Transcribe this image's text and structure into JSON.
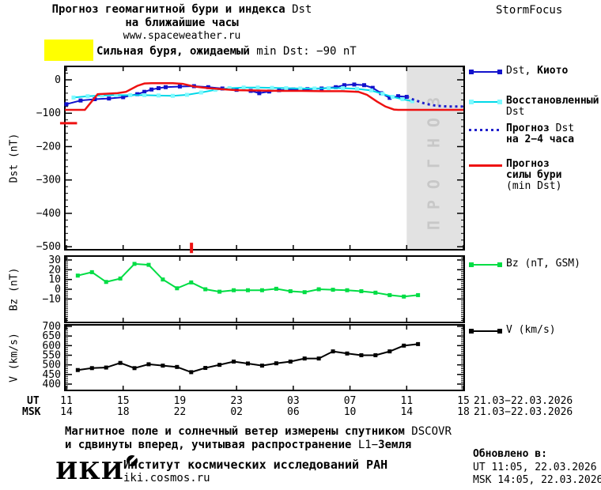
{
  "brand": "StormFocus",
  "title": {
    "line1": [
      {
        "t": "Прогноз геомагнитной бури и индекса ",
        "f": "b"
      },
      {
        "t": "Dst",
        "f": "l"
      }
    ],
    "line2": [
      {
        "t": "на ближайшие часы",
        "f": "b"
      }
    ],
    "line3": [
      {
        "t": "www.spaceweather.ru",
        "f": "l"
      }
    ]
  },
  "alert": {
    "color": "#ffff00",
    "label": [
      {
        "t": "Сильная буря, ожидаемый ",
        "f": "b"
      },
      {
        "t": "min Dst: −90 nT",
        "f": "l"
      }
    ]
  },
  "legend": {
    "items": [
      {
        "name": "dst-kyoto",
        "color": "#1212cc",
        "marker": "#1212cc",
        "lines": [
          [
            {
              "t": "Dst, ",
              "f": "l"
            },
            {
              "t": "Киото",
              "f": "b"
            }
          ]
        ]
      },
      {
        "name": "restored-dst",
        "color": "#00d8e8",
        "marker": "#7dfaff",
        "lines": [
          [
            {
              "t": "Восстановленный",
              "f": "b"
            }
          ],
          [
            {
              "t": "Dst",
              "f": "l"
            }
          ]
        ]
      },
      {
        "name": "forecast-dst",
        "color": "#2020cc",
        "lines": [
          [
            {
              "t": "Прогноз ",
              "f": "b"
            },
            {
              "t": "Dst",
              "f": "l"
            }
          ],
          [
            {
              "t": "на 2−4 часа",
              "f": "b"
            }
          ]
        ]
      },
      {
        "name": "forecast-strength",
        "color": "#ee1111",
        "lines": [
          [
            {
              "t": "Прогноз",
              "f": "b"
            }
          ],
          [
            {
              "t": "силы бури",
              "f": "b"
            }
          ],
          [
            {
              "t": "(min Dst)",
              "f": "l"
            }
          ]
        ]
      },
      {
        "name": "bz",
        "color": "#00dd44",
        "marker": "#00dd44",
        "lines": [
          [
            {
              "t": "Bz (nT, GSM)",
              "f": "l"
            }
          ]
        ]
      },
      {
        "name": "v",
        "color": "#000000",
        "marker": "#000000",
        "lines": [
          [
            {
              "t": "V (km/s)",
              "f": "l"
            }
          ]
        ]
      }
    ]
  },
  "xaxis": {
    "ut_label": "UT",
    "msk_label": "MSK",
    "tick_hours": [
      0,
      4,
      8,
      12,
      16,
      20,
      24,
      28
    ],
    "hours_ut": [
      "11",
      "15",
      "19",
      "23",
      "03",
      "07",
      "11",
      "15"
    ],
    "hours_msk": [
      "14",
      "18",
      "22",
      "02",
      "06",
      "10",
      "14",
      "18"
    ],
    "date_ut": "21.03−22.03.2026",
    "date_msk": "21.03−22.03.2026"
  },
  "chart_data": [
    {
      "type": "line",
      "ylabel": "Dst (nT)",
      "yticks": [
        0,
        -100,
        -200,
        -300,
        -400,
        -500
      ],
      "yminor": 20,
      "ylim": [
        -509,
        40
      ],
      "xlim_hours": [
        0,
        28
      ],
      "forecast_band": {
        "from_hour": 24,
        "to_hour": 28,
        "label": "ПРОГНОЗ",
        "fill": "#e2e2e2",
        "label_color": "#c8c8c8"
      },
      "series": [
        {
          "name": "Dst, Киото",
          "color": "#1212cc",
          "marker": "#1212cc",
          "points": [
            [
              0,
              -73
            ],
            [
              1,
              -62
            ],
            [
              2,
              -58
            ],
            [
              3,
              -56
            ],
            [
              4,
              -52
            ],
            [
              5,
              -43
            ],
            [
              5.5,
              -36
            ],
            [
              6,
              -29
            ],
            [
              6.5,
              -25
            ],
            [
              7,
              -22
            ],
            [
              8,
              -20
            ],
            [
              9,
              -19
            ],
            [
              10,
              -22
            ],
            [
              11,
              -26
            ],
            [
              12,
              -30
            ],
            [
              13,
              -33
            ],
            [
              13.6,
              -40
            ],
            [
              14.3,
              -35
            ],
            [
              15,
              -31
            ],
            [
              16,
              -29
            ],
            [
              17,
              -28
            ],
            [
              18,
              -26
            ],
            [
              19,
              -22
            ],
            [
              19.6,
              -16
            ],
            [
              20.3,
              -14
            ],
            [
              21,
              -16
            ],
            [
              21.6,
              -24
            ],
            [
              22.2,
              -40
            ],
            [
              22.8,
              -54
            ],
            [
              23.4,
              -49
            ],
            [
              24,
              -51
            ]
          ]
        },
        {
          "name": "Восстановленный Dst",
          "color": "#00d8e8",
          "marker": "#7dfaff",
          "points": [
            [
              0.5,
              -53
            ],
            [
              1.5,
              -49
            ],
            [
              2.5,
              -47
            ],
            [
              3.5,
              -46
            ],
            [
              4.5,
              -46
            ],
            [
              5.5,
              -46
            ],
            [
              6.5,
              -47
            ],
            [
              7.5,
              -48
            ],
            [
              8.5,
              -45
            ],
            [
              9.5,
              -38
            ],
            [
              10.5,
              -30
            ],
            [
              11.5,
              -25
            ],
            [
              12.5,
              -23
            ],
            [
              13.5,
              -23
            ],
            [
              14.5,
              -24
            ],
            [
              15.5,
              -25
            ],
            [
              16.5,
              -26
            ],
            [
              17.5,
              -26
            ],
            [
              18.5,
              -25
            ],
            [
              19.5,
              -25
            ],
            [
              20.5,
              -27
            ],
            [
              21.5,
              -32
            ],
            [
              22.3,
              -42
            ],
            [
              23,
              -51
            ],
            [
              23.7,
              -58
            ],
            [
              24.4,
              -64
            ]
          ]
        },
        {
          "name": "Прогноз Dst на 2−4 часа",
          "color": "#2020cc",
          "dash": "3 4",
          "width": 3,
          "points": [
            [
              24,
              -51
            ],
            [
              24.4,
              -58
            ],
            [
              24.8,
              -64
            ],
            [
              25.2,
              -70
            ],
            [
              25.6,
              -74
            ],
            [
              26,
              -77
            ],
            [
              26.5,
              -79
            ],
            [
              27,
              -80
            ],
            [
              27.5,
              -80
            ],
            [
              28,
              -80
            ]
          ]
        },
        {
          "name": "Прогноз силы бури (min Dst)",
          "color": "#ee1111",
          "width": 2.5,
          "points": [
            [
              -0.1,
              -90
            ],
            [
              1.3,
              -90
            ],
            [
              2.2,
              -43
            ],
            [
              3.6,
              -40
            ],
            [
              4.2,
              -36
            ],
            [
              5,
              -18
            ],
            [
              5.5,
              -11
            ],
            [
              6,
              -10
            ],
            [
              7.5,
              -10
            ],
            [
              8.2,
              -12
            ],
            [
              9,
              -20
            ],
            [
              10,
              -25
            ],
            [
              11,
              -28
            ],
            [
              12,
              -31
            ],
            [
              13.5,
              -32
            ],
            [
              15,
              -33
            ],
            [
              16.5,
              -33
            ],
            [
              18,
              -34
            ],
            [
              19.5,
              -34
            ],
            [
              20.6,
              -36
            ],
            [
              21.2,
              -45
            ],
            [
              21.9,
              -65
            ],
            [
              22.5,
              -80
            ],
            [
              23.1,
              -89
            ],
            [
              23.4,
              -90
            ],
            [
              28,
              -90
            ]
          ]
        }
      ],
      "annotations": [
        {
          "type": "hseg",
          "v": -130,
          "h_from": -0.45,
          "h_to": 0.75,
          "color": "#ee1111",
          "width": 3
        },
        {
          "type": "vseg",
          "h": 8.82,
          "v_from": -488,
          "v_to": -519,
          "color": "#ee1111",
          "width": 4
        }
      ]
    },
    {
      "type": "line",
      "ylabel": "Bz (nT)",
      "yticks": [
        30,
        20,
        10,
        0,
        -10
      ],
      "yminor": 2,
      "ylim": [
        -34,
        34
      ],
      "series": [
        {
          "name": "Bz (nT, GSM)",
          "color": "#00dd44",
          "marker": "#00dd44",
          "x_start": 0.8,
          "x_step": 1,
          "values": [
            14,
            17.5,
            7.5,
            11,
            26,
            25,
            10,
            1,
            7,
            0,
            -2.5,
            -1,
            -1,
            -1,
            0.5,
            -2,
            -3,
            0,
            -0.5,
            -1,
            -2,
            -3.5,
            -6,
            -7.5,
            -6
          ]
        }
      ]
    },
    {
      "type": "line",
      "ylabel": "V (km/s)",
      "yticks": [
        700,
        650,
        600,
        550,
        500,
        450,
        400
      ],
      "yminor": 10,
      "ylim": [
        367,
        708
      ],
      "series": [
        {
          "name": "V (km/s)",
          "color": "#000000",
          "marker": "#000000",
          "x_start": 0.8,
          "x_step": 1,
          "values": [
            473,
            483,
            486,
            510,
            483,
            503,
            496,
            489,
            462,
            484,
            500,
            517,
            507,
            496,
            508,
            517,
            533,
            533,
            570,
            559,
            550,
            550,
            570,
            600,
            608
          ]
        }
      ]
    }
  ],
  "footer": {
    "logo": "ИКИ",
    "note1": [
      {
        "t": "Магнитное поле и солнечный ветер измерены спутником ",
        "f": "b"
      },
      {
        "t": "DSCOVR",
        "f": "l"
      }
    ],
    "note2": [
      {
        "t": "и сдвинуты вперед, учитывая распространение ",
        "f": "b"
      },
      {
        "t": "L1−",
        "f": "l"
      },
      {
        "t": "Земля",
        "f": "b"
      }
    ],
    "institute": [
      {
        "t": "Институт космических исследований РАН",
        "f": "b"
      }
    ],
    "site": [
      {
        "t": "iki.cosmos.ru",
        "f": "l"
      }
    ],
    "updated_label": [
      {
        "t": "Обновлено в:",
        "f": "b"
      }
    ],
    "updated_ut": [
      {
        "t": "UT   11:05, 22.03.2026",
        "f": "l"
      }
    ],
    "updated_msk": [
      {
        "t": "MSK 14:05, 22.03.2026",
        "f": "l"
      }
    ]
  }
}
